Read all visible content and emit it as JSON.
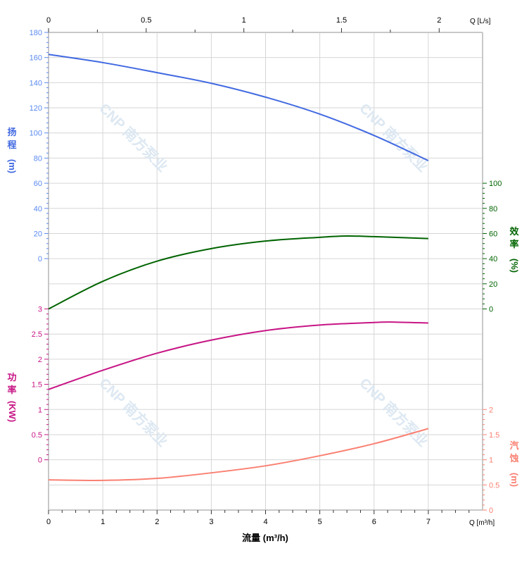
{
  "chart_data": {
    "type": "line",
    "title": "",
    "watermark": "CNP 南方泵业",
    "x_axis_bottom": {
      "label": "流量 (m³/h)",
      "unit_label": "Q [m³/h]",
      "range": [
        0,
        8
      ],
      "ticks": [
        "0",
        "1",
        "2",
        "3",
        "4",
        "5",
        "6",
        "7"
      ]
    },
    "x_axis_top": {
      "unit_label": "Q [L/s]",
      "range": [
        0,
        2.222
      ],
      "ticks": [
        "0",
        "0.5",
        "1",
        "1.5",
        "2"
      ]
    },
    "grid": true,
    "axes": {
      "head": {
        "label_chars": [
          "扬",
          "程",
          "(m)"
        ],
        "range": [
          0,
          180
        ],
        "ticks": [
          "0",
          "20",
          "40",
          "60",
          "80",
          "100",
          "120",
          "140",
          "160",
          "180"
        ],
        "color": "#4169e1",
        "tick_color": "#5b8af0",
        "side": "left"
      },
      "efficiency": {
        "label_chars": [
          "效",
          "率",
          "(%)"
        ],
        "range": [
          0,
          100
        ],
        "ticks": [
          "0",
          "20",
          "40",
          "60",
          "80",
          "100"
        ],
        "color": "#006400",
        "side": "right"
      },
      "power": {
        "label_chars": [
          "功",
          "率",
          "(KW)"
        ],
        "range": [
          0,
          3
        ],
        "ticks": [
          "0",
          "0.5",
          "1",
          "1.5",
          "2",
          "2.5",
          "3"
        ],
        "color": "#c71585",
        "side": "left"
      },
      "npsh": {
        "label_chars": [
          "汽",
          "蚀",
          "(m)"
        ],
        "range": [
          0,
          2
        ],
        "ticks": [
          "0",
          "0.5",
          "1",
          "1.5",
          "2"
        ],
        "color": "#fa8072",
        "side": "right"
      }
    },
    "series": [
      {
        "axis": "head",
        "color": "#4169e1",
        "x": [
          0,
          1,
          2,
          3,
          4,
          5,
          6,
          7
        ],
        "y": [
          162.5,
          156,
          148,
          139.5,
          128.5,
          115,
          98,
          78
        ]
      },
      {
        "axis": "efficiency",
        "color": "#006400",
        "x": [
          0,
          1,
          2,
          3,
          4,
          5,
          5.5,
          6,
          7
        ],
        "y": [
          0,
          22,
          38,
          48,
          54,
          57,
          58,
          57.5,
          56
        ]
      },
      {
        "axis": "power",
        "color": "#c71585",
        "x": [
          0,
          1,
          2,
          3,
          4,
          5,
          6,
          6.3,
          7
        ],
        "y": [
          1.4,
          1.78,
          2.12,
          2.38,
          2.57,
          2.68,
          2.73,
          2.74,
          2.72
        ]
      },
      {
        "axis": "npsh",
        "color": "#fa8072",
        "x": [
          0,
          1,
          2,
          3,
          4,
          5,
          6,
          7
        ],
        "y": [
          0.6,
          0.59,
          0.63,
          0.74,
          0.88,
          1.08,
          1.32,
          1.62
        ]
      }
    ]
  }
}
